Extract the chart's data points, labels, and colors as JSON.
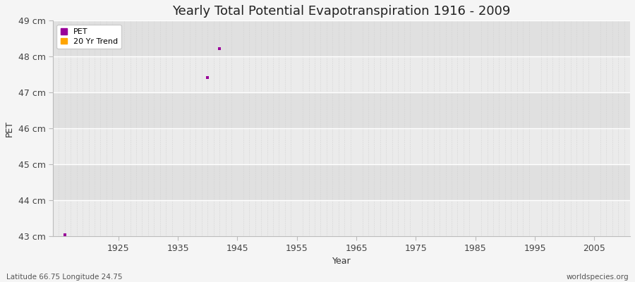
{
  "title": "Yearly Total Potential Evapotranspiration 1916 - 2009",
  "xlabel": "Year",
  "ylabel": "PET",
  "xlim": [
    1914,
    2011
  ],
  "ylim": [
    43,
    49
  ],
  "yticks": [
    43,
    44,
    45,
    46,
    47,
    48,
    49
  ],
  "ytick_labels": [
    "43 cm",
    "44 cm",
    "45 cm",
    "46 cm",
    "47 cm",
    "48 cm",
    "49 cm"
  ],
  "xticks": [
    1925,
    1935,
    1945,
    1955,
    1965,
    1975,
    1985,
    1995,
    2005
  ],
  "pet_points_x": [
    1916,
    1940,
    1942
  ],
  "pet_points_y": [
    43.05,
    47.42,
    48.22
  ],
  "pet_color": "#990099",
  "trend_color": "#FFA500",
  "bg_color": "#f5f5f5",
  "band_colors": [
    "#ebebeb",
    "#e0e0e0"
  ],
  "grid_major_color": "#ffffff",
  "grid_minor_color": "#cccccc",
  "legend_labels": [
    "PET",
    "20 Yr Trend"
  ],
  "subtitle_left": "Latitude 66.75 Longitude 24.75",
  "subtitle_right": "worldspecies.org",
  "title_fontsize": 13,
  "label_fontsize": 9,
  "tick_fontsize": 9
}
